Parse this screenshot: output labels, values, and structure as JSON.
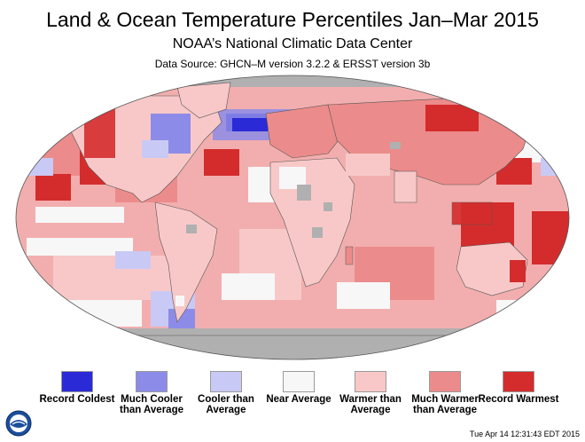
{
  "title": "Land & Ocean Temperature Percentiles Jan–Mar 2015",
  "subtitle": "NOAA’s National Climatic Data Center",
  "source": "Data Source: GHCN–M version 3.2.2 & ERSST version 3b",
  "timestamp": "Tue Apr 14 12:31:43 EDT 2015",
  "logo": {
    "text": "NOAA",
    "icon": "noaa-logo-icon"
  },
  "colors": {
    "record_coldest": "#2a2ad6",
    "much_cooler": "#8c8ce8",
    "cooler": "#c9c9f5",
    "near": "#f7f7f7",
    "warmer": "#f8c8c8",
    "much_warmer": "#ec8b8b",
    "record_warmest": "#d42c2c",
    "no_data": "#b0b0b0"
  },
  "legend": [
    {
      "label": "Record Coldest",
      "color": "#2a2ad6"
    },
    {
      "label": "Much Cooler than Average",
      "color": "#8c8ce8"
    },
    {
      "label": "Cooler than Average",
      "color": "#c9c9f5"
    },
    {
      "label": "Near Average",
      "color": "#f7f7f7"
    },
    {
      "label": "Warmer than Average",
      "color": "#f8c8c8"
    },
    {
      "label": "Much Warmer than Average",
      "color": "#ec8b8b"
    },
    {
      "label": "Record Warmest",
      "color": "#d42c2c"
    }
  ]
}
